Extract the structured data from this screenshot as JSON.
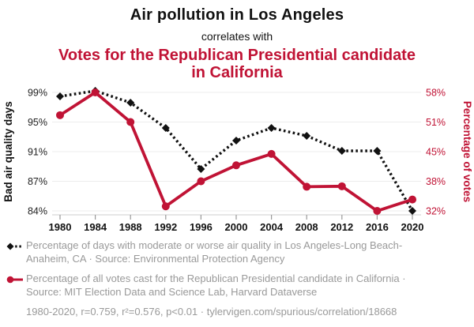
{
  "header": {
    "title": "Air pollution in Los Angeles",
    "subtitle": "correlates with",
    "title2": "Votes for the Republican Presidential candidate in California"
  },
  "colors": {
    "accent_red": "#c01335",
    "series_black": "#111111",
    "legend_text": "#999999",
    "gridline": "#ececec",
    "axis_line": "#cccccc",
    "tick_mark": "#999999",
    "tick_label": "#222222"
  },
  "chart_data": {
    "type": "line",
    "x_labels": [
      "1980",
      "1984",
      "1988",
      "1992",
      "1996",
      "2000",
      "2004",
      "2008",
      "2012",
      "2016",
      "2020"
    ],
    "series": [
      {
        "name": "air-quality",
        "label": "Percentage of days with moderate or worse air quality in Los Angeles-Long Beach-Anaheim, CA",
        "axis": "left",
        "color": "#111111",
        "line_style": "dotted",
        "marker": "diamond",
        "values": [
          98.5,
          99.2,
          97.7,
          94.5,
          89.3,
          92.9,
          94.5,
          93.5,
          91.6,
          91.6,
          84.0
        ]
      },
      {
        "name": "republican-votes",
        "label": "Percentage of all votes cast for the Republican Presidential candidate in California",
        "axis": "right",
        "color": "#c01335",
        "line_style": "solid",
        "marker": "circle",
        "values": [
          53.0,
          58.0,
          51.5,
          33.0,
          38.5,
          42.0,
          44.5,
          37.3,
          37.4,
          32.0,
          34.5
        ]
      }
    ],
    "left_axis": {
      "title": "Bad air quality days",
      "tick_labels": [
        "99%",
        "95%",
        "91%",
        "87%",
        "84%"
      ],
      "range": [
        84,
        99
      ],
      "color": "#111111"
    },
    "right_axis": {
      "title": "Percentage of votes",
      "tick_labels": [
        "58%",
        "51%",
        "45%",
        "38%",
        "32%"
      ],
      "range": [
        32,
        58
      ],
      "color": "#c01335"
    },
    "grid": "horizontal",
    "legend_position": "bottom"
  },
  "legend": {
    "items": [
      {
        "label": "Percentage of days with moderate or worse air quality in Los Angeles-Long Beach-Anaheim, CA · Source: Environmental Protection Agency"
      },
      {
        "label": "Percentage of all votes cast for the Republican Presidential candidate in California · Source: MIT Election Data and Science Lab, Harvard Dataverse"
      }
    ],
    "footer": "1980-2020, r=0.759, r²=0.576, p<0.01 · tylervigen.com/spurious/correlation/18668"
  }
}
